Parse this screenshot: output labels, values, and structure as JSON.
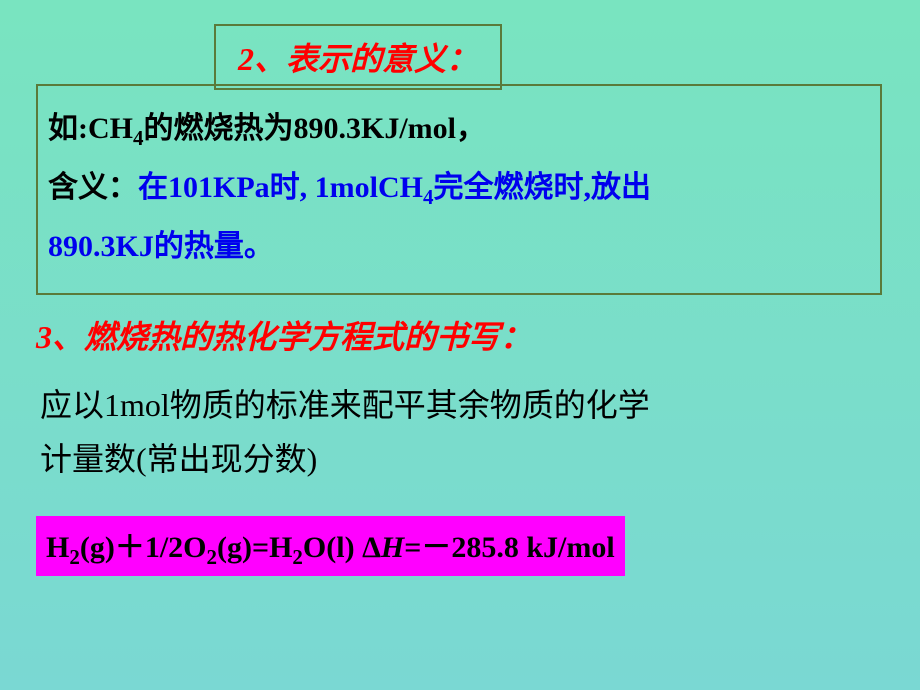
{
  "title": {
    "text": "2、表示的意义："
  },
  "box": {
    "line1_prefix": "如:CH",
    "line1_sub1": "4",
    "line1_rest": "的燃烧热为890.3KJ/mol，",
    "line2_prefix": "含义：",
    "line2_blue_a": "在101KPa时, 1molCH",
    "line2_sub": "4",
    "line2_blue_b": "完全燃烧时,放出",
    "line3_blue": "890.3KJ的热量。"
  },
  "section3": {
    "text": "3、燃烧热的热化学方程式的书写："
  },
  "body3": {
    "line1": "应以1mol物质的标准来配平其余物质的化学",
    "line2": "计量数(常出现分数)"
  },
  "equation": {
    "h2": "H",
    "h2sub": "2",
    "g1": "(g)＋1/2O",
    "o2sub": "2",
    "g2": "(g)=H",
    "h2osub": "2",
    "g3": "O(l)  Δ",
    "hital": "H",
    "val": "=－285.8 kJ/mol"
  },
  "colors": {
    "bg_top": "#79e4c0",
    "bg_bottom": "#7ad8d3",
    "border": "#5a7a3a",
    "red": "#ff0000",
    "blue": "#0000ee",
    "black": "#000000",
    "magenta": "#ff00ff"
  }
}
